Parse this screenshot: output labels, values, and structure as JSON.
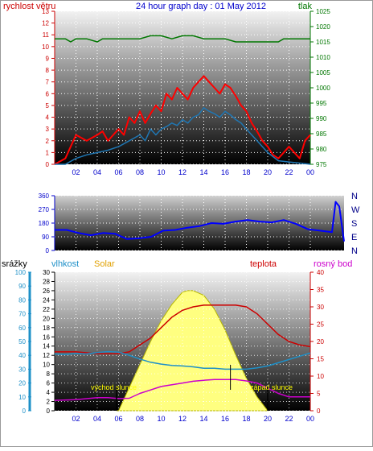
{
  "colors": {
    "wind": "#cc0000",
    "gust": "#ff0000",
    "wind_avg": "#1f77b4",
    "pressure": "#007700",
    "direction": "#0000ff",
    "humidity": "#1e90c8",
    "solar_fill": "#ffff80",
    "solar_stroke": "#b8b800",
    "solar_label": "#e0a000",
    "temperature": "#cc0000",
    "dewpoint": "#cc00cc",
    "rain_axis": "#1e90c8",
    "hour_axis": "#0000cc",
    "annotation": "#ffff00"
  },
  "chart_data": [
    {
      "type": "line",
      "title": "24 hour graph day : 01 May 2012",
      "left_axis_label": "rychlost větru",
      "right_axis_label": "tlak",
      "x_ticks": [
        "02",
        "04",
        "06",
        "08",
        "10",
        "12",
        "14",
        "16",
        "18",
        "20",
        "22",
        "00"
      ],
      "left_ticks": [
        "0",
        "1",
        "2",
        "3",
        "4",
        "5",
        "6",
        "7",
        "8",
        "9",
        "10",
        "11",
        "12",
        "13"
      ],
      "right_ticks": [
        "975",
        "980",
        "985",
        "990",
        "995",
        "1000",
        "1005",
        "1010",
        "1015",
        "1020",
        "1025"
      ],
      "left_ylim": [
        0,
        13
      ],
      "right_ylim": [
        975,
        1025
      ],
      "xlim_hours": [
        0,
        24
      ],
      "grid": true,
      "series": [
        {
          "key": "gust",
          "x": [
            0,
            1,
            2,
            3,
            4,
            4.5,
            5,
            5.5,
            6,
            6.5,
            7,
            7.5,
            8,
            8.5,
            9,
            9.5,
            10,
            10.5,
            11,
            11.5,
            12,
            12.5,
            13,
            13.5,
            14,
            14.5,
            15,
            15.5,
            16,
            16.5,
            17,
            17.5,
            18,
            18.5,
            19,
            19.5,
            20,
            20.5,
            21,
            21.5,
            22,
            22.5,
            23,
            23.5,
            24
          ],
          "y": [
            0,
            0.5,
            2.5,
            2,
            2.5,
            2.8,
            2,
            2.5,
            3,
            2.5,
            4,
            3.5,
            4.5,
            3.5,
            4.3,
            5,
            4.5,
            6,
            5.5,
            6.5,
            6,
            5.5,
            6.5,
            7,
            7.5,
            7,
            6.5,
            6,
            6.8,
            6.5,
            5.8,
            5,
            4.5,
            3.5,
            2.8,
            2,
            1.5,
            0.8,
            0.5,
            1,
            1.5,
            1,
            0.5,
            2,
            2.5
          ]
        },
        {
          "key": "wind",
          "x": [
            0,
            1,
            2,
            3,
            4,
            5,
            6,
            7,
            8,
            8.5,
            9,
            9.5,
            10,
            10.5,
            11,
            11.5,
            12,
            12.5,
            13,
            13.5,
            14,
            14.5,
            15,
            15.5,
            16,
            16.5,
            17,
            17.5,
            18,
            18.5,
            19,
            19.5,
            20,
            21,
            22,
            23,
            24
          ],
          "y": [
            0,
            0,
            0.5,
            0.8,
            1,
            1.2,
            1.5,
            2,
            2.5,
            2,
            3,
            2.5,
            3,
            3.2,
            3.5,
            3.3,
            3.8,
            3.5,
            4,
            4.2,
            4.8,
            4.5,
            4.3,
            4,
            4.5,
            4.2,
            3.8,
            3.5,
            3,
            2.5,
            2,
            1.5,
            1,
            0.3,
            0.2,
            0.1,
            0
          ]
        },
        {
          "key": "pressure",
          "x": [
            0,
            1,
            1.5,
            2,
            3,
            4,
            4.5,
            5,
            6,
            7,
            8,
            9,
            9.5,
            10,
            11,
            12,
            13,
            14,
            15,
            16,
            17,
            18,
            19,
            20,
            21,
            21.5,
            22,
            23,
            24
          ],
          "y": [
            1016,
            1016,
            1015,
            1016,
            1016,
            1015,
            1016,
            1016,
            1016,
            1016,
            1016,
            1017,
            1017,
            1017,
            1016,
            1017,
            1017,
            1016,
            1016,
            1016,
            1015,
            1015,
            1015,
            1015,
            1015,
            1016,
            1016,
            1016,
            1016
          ]
        }
      ]
    },
    {
      "type": "line",
      "right_labels": [
        "N",
        "W",
        "S",
        "E",
        "N"
      ],
      "left_ticks": [
        "0",
        "90",
        "180",
        "270",
        "360"
      ],
      "ylim": [
        0,
        360
      ],
      "xlim_hours": [
        0,
        24
      ],
      "grid": true,
      "series": [
        {
          "key": "direction",
          "x": [
            0,
            1,
            2,
            3,
            4,
            5,
            6,
            7,
            8,
            9,
            10,
            11,
            12,
            13,
            14,
            15,
            16,
            17,
            18,
            19,
            20,
            21,
            22,
            23,
            23.3,
            23.6,
            24
          ],
          "y": [
            135,
            135,
            115,
            100,
            115,
            110,
            75,
            80,
            90,
            130,
            135,
            150,
            160,
            180,
            175,
            190,
            200,
            190,
            185,
            200,
            175,
            140,
            130,
            120,
            320,
            290,
            60
          ]
        }
      ]
    },
    {
      "type": "line",
      "labels": {
        "rain": "srážky",
        "humidity": "vlhkost",
        "solar": "Solar",
        "temperature": "teplota",
        "dewpoint": "rosný bod"
      },
      "x_ticks": [
        "02",
        "04",
        "06",
        "08",
        "10",
        "12",
        "14",
        "16",
        "18",
        "20",
        "22",
        "00"
      ],
      "rain_ticks": [
        "0",
        "10",
        "20",
        "30",
        "40",
        "50",
        "60",
        "70",
        "80",
        "90",
        "100"
      ],
      "humidity_ticks": [
        "0",
        "2",
        "4",
        "6",
        "8",
        "10",
        "12",
        "14",
        "16",
        "18",
        "20",
        "22",
        "24",
        "26",
        "28",
        "30"
      ],
      "temperature_ticks": [
        "0",
        "5",
        "10",
        "15",
        "20",
        "25",
        "30",
        "35",
        "40"
      ],
      "rain_ylim": [
        0,
        100
      ],
      "humidity_ylim": [
        0,
        30
      ],
      "temperature_ylim": [
        0,
        40
      ],
      "xlim_hours": [
        0,
        24
      ],
      "grid": true,
      "annotations": {
        "sunrise": "východ slunce",
        "sunset": "západ slunce"
      },
      "markers_hours": {
        "sunrise": 5.8,
        "sunset": 20.0,
        "spike": 16.5
      },
      "series": [
        {
          "key": "temperature",
          "x": [
            0,
            2,
            4,
            6,
            7,
            8,
            9,
            10,
            11,
            12,
            13,
            14,
            15,
            16,
            17,
            18,
            19,
            20,
            21,
            22,
            23,
            24
          ],
          "y": [
            17,
            17,
            16.5,
            16.5,
            17,
            19,
            21,
            24,
            27,
            29,
            30,
            30.5,
            30.5,
            30.5,
            30.5,
            30,
            28,
            25,
            22,
            20,
            19,
            18.5
          ]
        },
        {
          "key": "dewpoint",
          "x": [
            0,
            2,
            4,
            5,
            6,
            7,
            8,
            9,
            10,
            11,
            12,
            13,
            14,
            15,
            16,
            17,
            18,
            19,
            20,
            21,
            22,
            23,
            24
          ],
          "y": [
            3,
            3.2,
            3.8,
            3.8,
            3.5,
            3.6,
            5,
            6,
            7,
            7.5,
            8,
            8.5,
            8.8,
            9,
            9,
            9,
            8.6,
            8,
            6.5,
            5,
            4,
            4,
            4
          ]
        },
        {
          "key": "humidity",
          "x": [
            0,
            1,
            2,
            3,
            4,
            5,
            6,
            7,
            8,
            9,
            10,
            11,
            12,
            13,
            14,
            15,
            16,
            17,
            18,
            19,
            20,
            21,
            22,
            23,
            24
          ],
          "y": [
            12.3,
            12.2,
            12.4,
            12.3,
            12.6,
            12.8,
            12.7,
            12,
            11.2,
            10.5,
            10.1,
            9.8,
            9.7,
            9.5,
            9.2,
            9.2,
            9,
            9,
            9,
            9.3,
            9.7,
            10.4,
            11.1,
            11.8,
            12.5
          ]
        },
        {
          "key": "solar",
          "x": [
            5.8,
            6,
            7,
            8,
            9,
            10,
            11,
            12,
            12.5,
            13,
            13.5,
            14,
            15,
            16,
            17,
            18,
            19,
            20
          ],
          "y": [
            0,
            0,
            5,
            10,
            15,
            19.5,
            23,
            25.7,
            26,
            26,
            25.5,
            25,
            22,
            17.5,
            12,
            7,
            3,
            0
          ]
        }
      ]
    }
  ]
}
